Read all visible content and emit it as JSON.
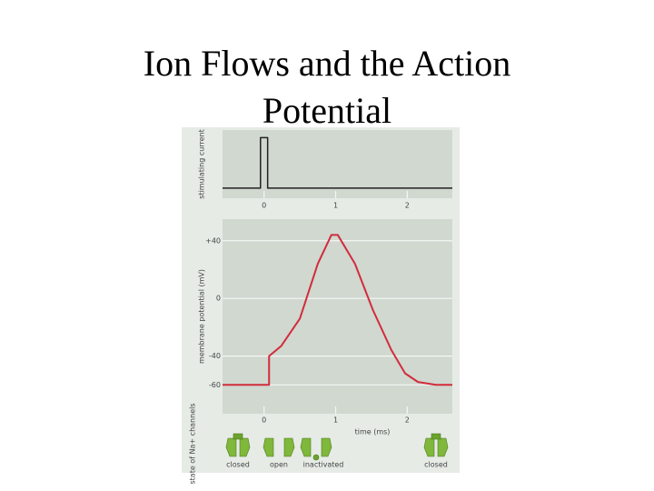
{
  "title": "Ion Flows and the Action Potential",
  "chart_data": [
    {
      "type": "line",
      "ylabel": "stimulating current",
      "x": [
        -0.58,
        -0.05,
        -0.05,
        0.05,
        0.05,
        2.63
      ],
      "series": [
        {
          "color": "#222222",
          "values": [
            0,
            0,
            1,
            1,
            0,
            0
          ]
        }
      ],
      "xlim": [
        -0.58,
        2.63
      ],
      "xticks": [
        0,
        1,
        2
      ],
      "ylim": [
        -0.2,
        1.15
      ]
    },
    {
      "type": "line",
      "ylabel": "membrane potential (mV)",
      "xlabel": "time (ms)",
      "x": [
        -0.58,
        0.07,
        0.07,
        0.24,
        0.5,
        0.75,
        0.94,
        1.03,
        1.27,
        1.52,
        1.78,
        1.97,
        2.15,
        2.4,
        2.63
      ],
      "series": [
        {
          "color": "#d22c3c",
          "values": [
            -60,
            -60,
            -40,
            -33,
            -14,
            24,
            44,
            44,
            24,
            -8,
            -36,
            -52,
            -58,
            -60,
            -60
          ]
        }
      ],
      "xlim": [
        -0.58,
        2.63
      ],
      "xticks": [
        0,
        1,
        2
      ],
      "ylim": [
        -80,
        55
      ],
      "yticks": [
        {
          "value": 40,
          "label": "+40"
        },
        0,
        -40,
        -60
      ],
      "grid": true
    }
  ],
  "channel_panel": {
    "label": "state of Na+ channels",
    "states": [
      "closed",
      "open",
      "inactivated",
      "closed"
    ]
  }
}
